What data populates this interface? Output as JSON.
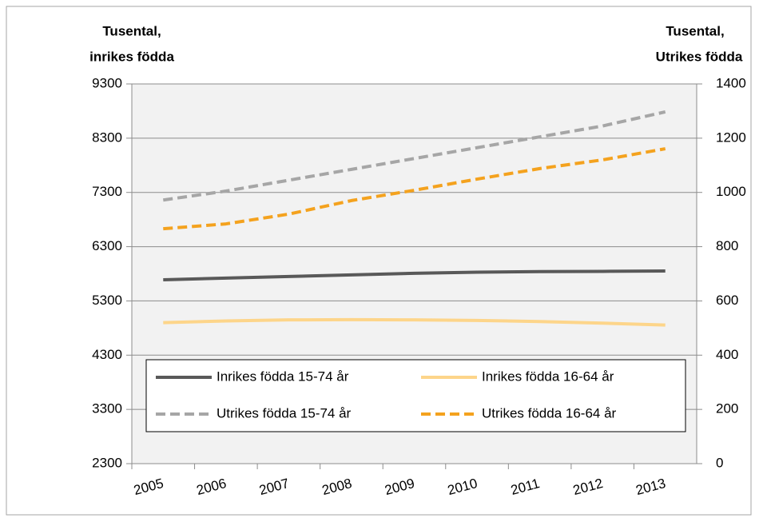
{
  "chart_data": {
    "type": "line",
    "y_label": [
      "Tusental,",
      "inrikes födda"
    ],
    "y2_label": [
      "Tusental,",
      "Utrikes födda"
    ],
    "categories": [
      "2005",
      "2006",
      "2007",
      "2008",
      "2009",
      "2010",
      "2011",
      "2012",
      "2013"
    ],
    "ylim": [
      2300,
      9300
    ],
    "yticks": [
      2300,
      3300,
      4300,
      5300,
      6300,
      7300,
      8300,
      9300
    ],
    "y2lim": [
      0,
      1400
    ],
    "y2ticks": [
      0,
      200,
      400,
      600,
      800,
      1000,
      1200,
      1400
    ],
    "grid": true,
    "legend": "bottom",
    "series": [
      {
        "name": "Inrikes födda 15-74 år",
        "color": "#595959",
        "dashed": false,
        "values": [
          5690,
          5720,
          5750,
          5780,
          5810,
          5830,
          5840,
          5845,
          5852
        ]
      },
      {
        "name": "Inrikes födda 16-64 år",
        "color": "#fdd58a",
        "dashed": false,
        "values": [
          4900,
          4930,
          4950,
          4955,
          4950,
          4940,
          4920,
          4890,
          4855
        ]
      },
      {
        "name": "Utrikes födda 15-74 år",
        "color": "#a6a6a6",
        "dashed": true,
        "axis": "y2",
        "values": [
          972,
          1005,
          1045,
          1085,
          1125,
          1165,
          1205,
          1245,
          1297
        ]
      },
      {
        "name": "Utrikes födda 16-64 år",
        "color": "#f4a21e",
        "dashed": true,
        "axis": "y2",
        "values": [
          866,
          884,
          920,
          970,
          1008,
          1049,
          1088,
          1120,
          1161
        ]
      }
    ]
  }
}
